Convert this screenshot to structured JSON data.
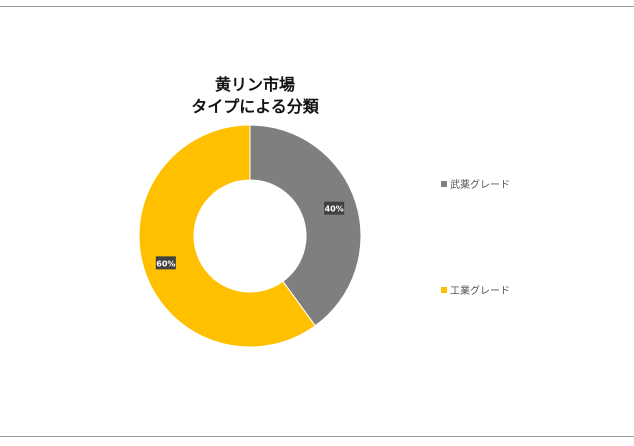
{
  "chart_data": {
    "type": "pie",
    "title_lines": [
      "黄リン市場",
      "タイプによる分類"
    ],
    "categories": [
      "武薬グレード",
      "工業グレード"
    ],
    "values": [
      40,
      60
    ],
    "labels": [
      "40%",
      "60%"
    ],
    "colors": [
      "#7f7f7f",
      "#ffc000"
    ],
    "donut": true,
    "legend_position": "right"
  }
}
